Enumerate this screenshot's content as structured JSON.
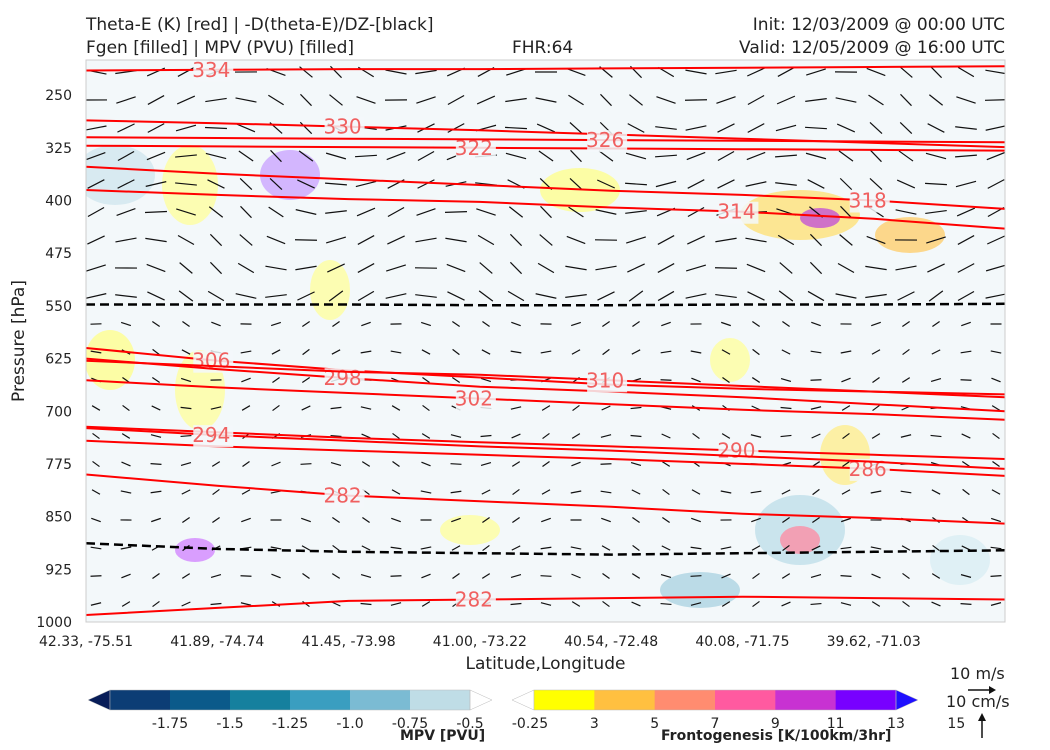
{
  "header": {
    "title_left_1": "Theta-E (K) [red] | -D(theta-E)/DZ-[black]",
    "title_left_2": "Fgen [filled] | MPV (PVU) [filled]",
    "forecast_hour": "FHR:64",
    "init": "Init: 12/03/2009 @ 00:00 UTC",
    "valid": "Valid: 12/05/2009 @ 16:00 UTC"
  },
  "chart_data": {
    "type": "contour",
    "xlabel": "Latitude,Longitude",
    "ylabel": "Pressure [hPa]",
    "x_ticks": [
      "42.33, -75.51",
      "41.89, -74.74",
      "41.45, -73.98",
      "41.00, -73.22",
      "40.54, -72.48",
      "40.08, -71.75",
      "39.62, -71.03"
    ],
    "y_ticks": [
      "250",
      "325",
      "400",
      "475",
      "550",
      "625",
      "700",
      "775",
      "850",
      "925",
      "1000"
    ],
    "y_range": [
      1000,
      200
    ],
    "y_axis_inverted": true,
    "grid": false,
    "theta_e_contours": [
      {
        "label": "334",
        "ys": [
          215,
          214,
          213,
          213,
          212,
          211,
          210,
          209
        ]
      },
      {
        "label": "330",
        "ys": [
          286,
          290,
          295,
          300,
          306,
          312,
          318,
          324
        ]
      },
      {
        "label": "322",
        "ys": [
          322,
          323,
          324,
          325,
          326,
          327,
          328,
          329
        ]
      },
      {
        "label": "326",
        "ys": [
          310,
          311,
          312,
          313,
          314,
          315,
          316,
          317
        ]
      },
      {
        "label": "314",
        "ys": [
          385,
          392,
          398,
          402,
          410,
          416,
          426,
          440
        ]
      },
      {
        "label": "318",
        "ys": [
          352,
          362,
          370,
          378,
          386,
          392,
          400,
          412
        ]
      },
      {
        "label": "306",
        "ys": [
          610,
          628,
          642,
          652,
          662,
          668,
          672,
          676
        ]
      },
      {
        "label": "298",
        "ys": [
          625,
          640,
          653,
          665,
          672,
          680,
          690,
          700
        ]
      },
      {
        "label": "302",
        "ys": [
          656,
          666,
          674,
          682,
          690,
          698,
          704,
          712
        ]
      },
      {
        "label": "310",
        "ys": [
          628,
          636,
          644,
          648,
          656,
          664,
          672,
          680
        ]
      },
      {
        "label": "290",
        "ys": [
          722,
          730,
          738,
          744,
          750,
          756,
          762,
          768
        ]
      },
      {
        "label": "286",
        "ys": [
          742,
          750,
          756,
          762,
          768,
          775,
          782,
          792
        ]
      },
      {
        "label": "294",
        "ys": [
          724,
          734,
          742,
          750,
          756,
          764,
          772,
          782
        ]
      },
      {
        "label": "282",
        "ys": [
          790,
          806,
          820,
          828,
          836,
          846,
          852,
          860
        ]
      },
      {
        "label": "282",
        "ys": [
          990,
          980,
          970,
          968,
          966,
          964,
          966,
          968
        ]
      }
    ],
    "stable_contours": [
      {
        "ys": [
          548,
          548,
          548,
          549,
          549,
          548,
          548,
          547
        ]
      },
      {
        "ys": [
          888,
          896,
          900,
          902,
          904,
          902,
          900,
          898
        ]
      }
    ],
    "colorbars": [
      {
        "label": "MPV [PVU]",
        "ticks": [
          "-1.75",
          "-1.5",
          "-1.25",
          "-1.0",
          "-0.75",
          "-0.5",
          "-0.25"
        ],
        "colors": [
          "#081d58",
          "#0c3d75",
          "#0b5a8a",
          "#15809e",
          "#3a9ec0",
          "#7bbbd3",
          "#bfdde6",
          "#ffffff"
        ]
      },
      {
        "label": "Frontogenesis [K/100km/3hr]",
        "ticks": [
          "3",
          "5",
          "7",
          "9",
          "11",
          "13",
          "15"
        ],
        "colors": [
          "#ffffff",
          "#ffff00",
          "#ffc040",
          "#ff8c70",
          "#ff5aa0",
          "#c832d2",
          "#7800ff",
          "#2010ff"
        ]
      }
    ],
    "reference_vectors": [
      "10 m/s",
      "10 cm/s"
    ],
    "colors": {
      "theta_e": "#ff0000",
      "stable": "#000000",
      "wind": "#111111"
    }
  }
}
